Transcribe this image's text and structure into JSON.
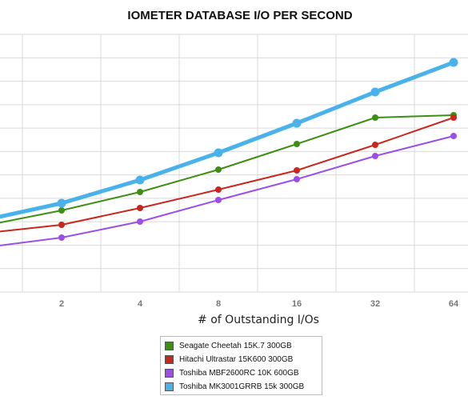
{
  "chart_data": {
    "type": "line",
    "title": "IOMETER DATABASE I/O PER SECOND",
    "xlabel": "# of Outstanding I/Os",
    "ylabel": "",
    "categories": [
      "1",
      "2",
      "4",
      "8",
      "16",
      "32",
      "64"
    ],
    "x_tick_labels": [
      "",
      "2",
      "4",
      "8",
      "16",
      "32",
      "64"
    ],
    "grid": true,
    "legend_position": "bottom",
    "series": [
      {
        "name": "Seagate Cheetah 15K.7 300GB",
        "color": "#3c8f13",
        "values": [
          283,
          263,
          240,
          212,
          180,
          147,
          144
        ]
      },
      {
        "name": "Hitachi Ultrastar 15K600 300GB",
        "color": "#c9271d",
        "values": [
          292,
          281,
          260,
          237,
          213,
          181,
          147
        ]
      },
      {
        "name": "Toshiba MBF2600RC 10K 600GB",
        "color": "#9c4fe6",
        "values": [
          310,
          297,
          277,
          250,
          224,
          195,
          170
        ]
      },
      {
        "name": "Toshiba MK3001GRRB 15k 300GB",
        "color": "#4ab2ea",
        "values": [
          276,
          254,
          225,
          191,
          154,
          115,
          78
        ]
      }
    ]
  }
}
